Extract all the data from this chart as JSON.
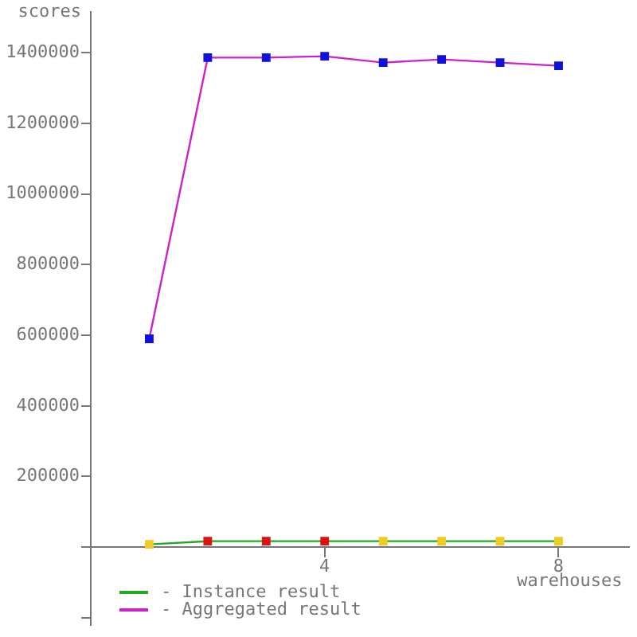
{
  "chart_data": {
    "type": "line",
    "xlabel": "warehouses",
    "ylabel": "scores",
    "x": [
      1,
      2,
      3,
      4,
      5,
      6,
      7,
      8
    ],
    "xlim": [
      0,
      9.2
    ],
    "xticks": [
      {
        "value": 4,
        "label": "4"
      },
      {
        "value": 8,
        "label": "8"
      }
    ],
    "ylim": [
      -220000,
      1515000
    ],
    "yticks": [
      {
        "value": -200000,
        "label": null
      },
      {
        "value": 0,
        "label": null
      },
      200000,
      400000,
      600000,
      800000,
      1000000,
      1200000,
      1400000
    ],
    "series": [
      {
        "name": "- Instance result",
        "color": "#22aa22",
        "colors": [
          "#eecc22",
          "#dd1111",
          "#dd1111",
          "#dd1111",
          "#eecc22",
          "#eecc22",
          "#eecc22",
          "#eecc22"
        ],
        "values": [
          8000,
          17000,
          17000,
          17000,
          17000,
          17000,
          17000,
          17000
        ]
      },
      {
        "name": "- Aggregated result",
        "color": "#cc22cc",
        "colors": [
          "#1111dd",
          "#1111dd",
          "#1111dd",
          "#1111dd",
          "#1111dd",
          "#1111dd",
          "#1111dd",
          "#1111dd"
        ],
        "values": [
          590000,
          1386000,
          1386000,
          1390000,
          1372000,
          1381000,
          1372000,
          1363000
        ]
      }
    ],
    "marker": "square",
    "legend": "bottom left"
  }
}
